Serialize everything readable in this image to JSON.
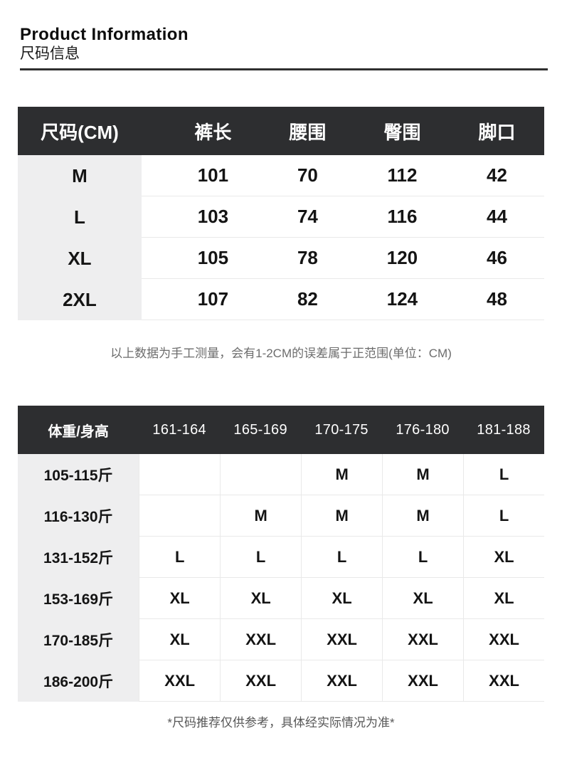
{
  "header": {
    "title_en": "Product Information",
    "title_zh": "尺码信息"
  },
  "size_table": {
    "headers": [
      "尺码(CM)",
      "裤长",
      "腰围",
      "臀围",
      "脚口"
    ],
    "rows": [
      {
        "size": "M",
        "measurements": [
          "101",
          "70",
          "112",
          "42"
        ]
      },
      {
        "size": "L",
        "measurements": [
          "103",
          "74",
          "116",
          "44"
        ]
      },
      {
        "size": "XL",
        "measurements": [
          "105",
          "78",
          "120",
          "46"
        ]
      },
      {
        "size": "2XL",
        "measurements": [
          "107",
          "82",
          "124",
          "48"
        ]
      }
    ],
    "note": "以上数据为手工测量，会有1-2CM的误差属于正范围(单位：CM)"
  },
  "recommend_table": {
    "headers": [
      "体重/身高",
      "161-164",
      "165-169",
      "170-175",
      "176-180",
      "181-188"
    ],
    "rows": [
      {
        "weight": "105-115斤",
        "sizes": [
          "",
          "",
          "M",
          "M",
          "L"
        ]
      },
      {
        "weight": "116-130斤",
        "sizes": [
          "",
          "M",
          "M",
          "M",
          "L"
        ]
      },
      {
        "weight": "131-152斤",
        "sizes": [
          "L",
          "L",
          "L",
          "L",
          "XL"
        ]
      },
      {
        "weight": "153-169斤",
        "sizes": [
          "XL",
          "XL",
          "XL",
          "XL",
          "XL"
        ]
      },
      {
        "weight": "170-185斤",
        "sizes": [
          "XL",
          "XXL",
          "XXL",
          "XXL",
          "XXL"
        ]
      },
      {
        "weight": "186-200斤",
        "sizes": [
          "XXL",
          "XXL",
          "XXL",
          "XXL",
          "XXL"
        ]
      }
    ],
    "note": "*尺码推荐仅供参考，具体经实际情况为准*"
  },
  "colors": {
    "table_header_bg": "#2d2e30",
    "label_column_bg": "#eeeeef",
    "divider": "#e9e9e9",
    "title_rule": "#2f2f2f",
    "note_gray": "#6c6c6c"
  }
}
